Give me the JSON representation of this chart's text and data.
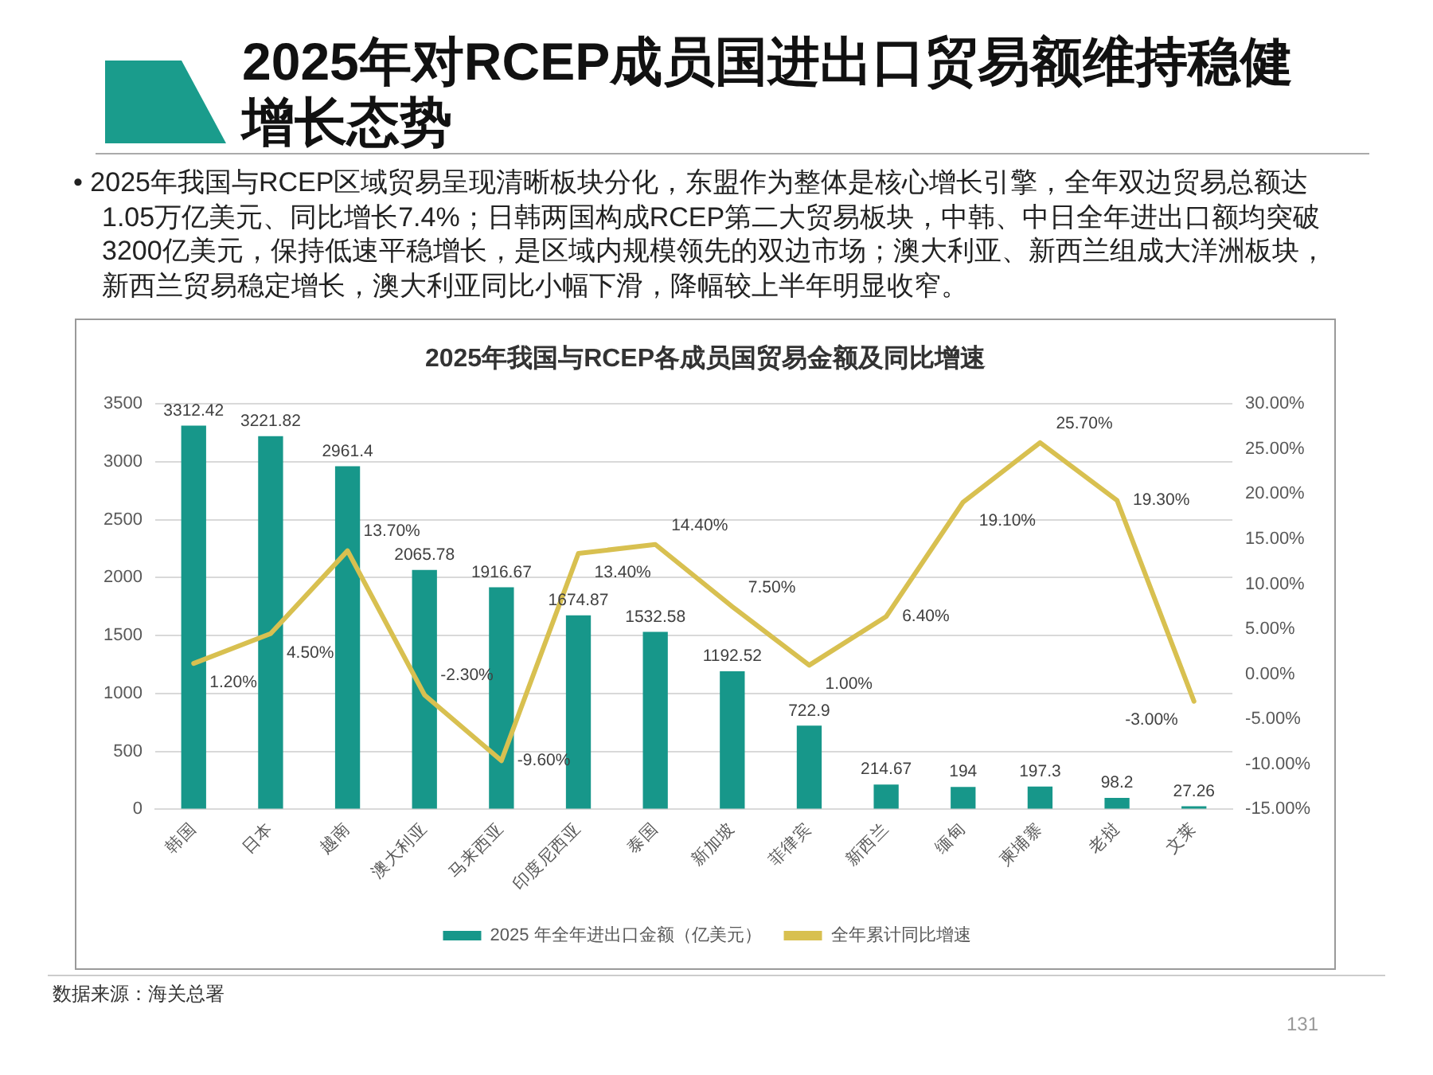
{
  "chart_data": {
    "type": "bar",
    "title": "2025年对RCEP成员国进出口贸易额维持稳健增长态势",
    "subtitle": "2025年我国与RCEP各成员国贸易金额及同比增速",
    "annotations": [
      "• 2025年我国与RCEP区域贸易呈现清晰板块分化，东盟作为整体是核心增长引擎，全年双边贸易总额达1.05万亿美元、同比增长7.4%；日韩两国构成RCEP第二大贸易板块，中韩、中日全年进出口额均突破3200亿美元，保持低速平稳增长，是区域内规模领先的双边市场；澳大利亚、新西兰组成大洋洲板块，新西兰贸易稳定增长，澳大利亚同比小幅下滑，降幅较上半年明显收窄。",
      "数据来源：海关总署",
      "131"
    ],
    "categories": [
      "韩国",
      "日本",
      "越南",
      "澳大利亚",
      "马来西亚",
      "印度尼西亚",
      "泰国",
      "新加坡",
      "菲律宾",
      "新西兰",
      "缅甸",
      "柬埔寨",
      "老挝",
      "文莱"
    ],
    "series": [
      {
        "name": "2025 年全年进出口金额（亿美元）",
        "color": "#17978a",
        "values": [
          3312.42,
          3221.82,
          2961.4,
          2065.78,
          1916.67,
          1674.87,
          1532.58,
          1192.52,
          722.9,
          214.67,
          194,
          197.3,
          98.2,
          27.26
        ],
        "value_labels": [
          "3312.42",
          "3221.82",
          "2961.4",
          "2065.78",
          "1916.67",
          "1674.87",
          "1532.58",
          "1192.52",
          "722.9",
          "214.67",
          "194",
          "197.3",
          "98.2",
          "27.26"
        ]
      },
      {
        "name": "全年累计同比增速",
        "type": "line",
        "axis": "y2",
        "color": "#d8c050",
        "values": [
          1.2,
          4.5,
          13.7,
          -2.3,
          -9.6,
          13.4,
          14.4,
          7.5,
          1.0,
          6.4,
          19.1,
          25.7,
          19.3,
          -3.0
        ],
        "value_labels": [
          "1.20%",
          "4.50%",
          "13.70%",
          "-2.30%",
          "-9.60%",
          "13.40%",
          "14.40%",
          "7.50%",
          "1.00%",
          "6.40%",
          "19.10%",
          "25.70%",
          "19.30%",
          "-3.00%"
        ]
      }
    ],
    "ylim": [
      0,
      3500
    ],
    "yticks": [
      0,
      500,
      1000,
      1500,
      2000,
      2500,
      3000,
      3500
    ],
    "y2lim": [
      -15,
      30
    ],
    "y2ticks": [
      {
        "value": -15,
        "label": "-15.00%"
      },
      {
        "value": -10,
        "label": "-10.00%"
      },
      {
        "value": -5,
        "label": "-5.00%"
      },
      {
        "value": 0,
        "label": "0.00%"
      },
      {
        "value": 5,
        "label": "5.00%"
      },
      {
        "value": 10,
        "label": "10.00%"
      },
      {
        "value": 15,
        "label": "15.00%"
      },
      {
        "value": 20,
        "label": "20.00%"
      },
      {
        "value": 25,
        "label": "25.00%"
      },
      {
        "value": 30,
        "label": "30.00%"
      }
    ],
    "grid": "y",
    "legend": "bottom",
    "marker": "none"
  }
}
